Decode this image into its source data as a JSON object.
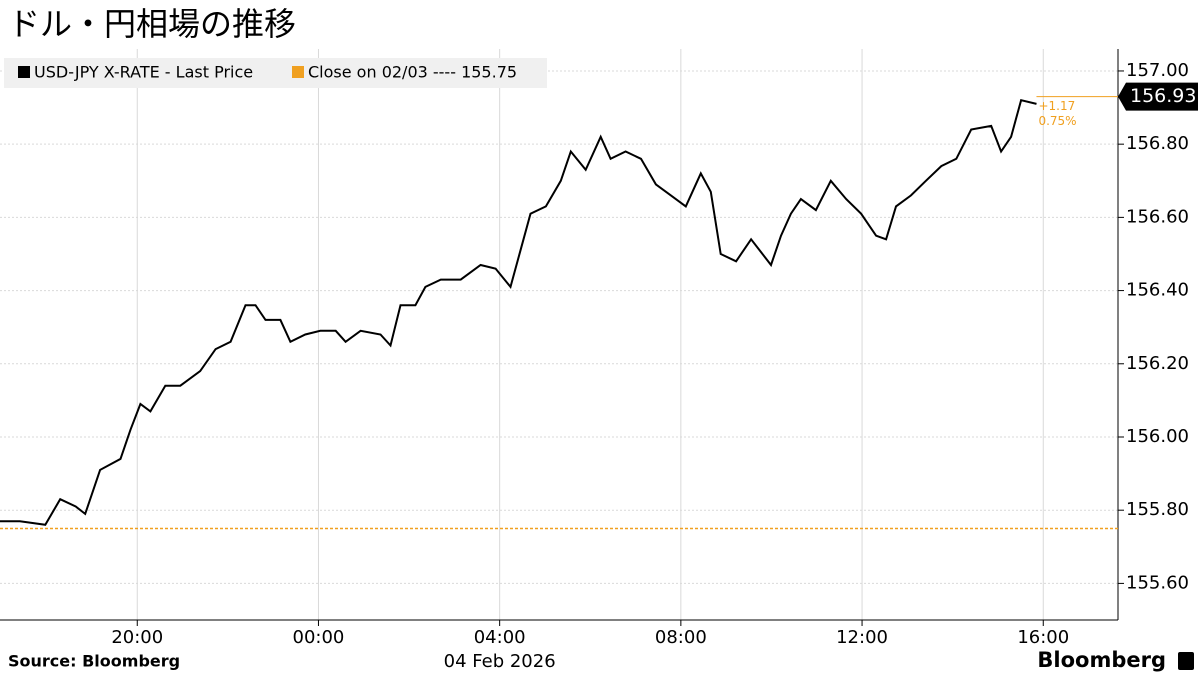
{
  "chart_data": {
    "type": "line",
    "title": "ドル・円相場の推移",
    "source": "Source:  Bloomberg",
    "brand": "Bloomberg",
    "date_label": "04 Feb 2026",
    "x": [
      -7.03,
      -6.59,
      -6.03,
      -5.7,
      -5.36,
      -5.15,
      -4.82,
      -4.37,
      -4.15,
      -3.93,
      -3.71,
      -3.38,
      -3.05,
      -2.61,
      -2.27,
      -1.94,
      -1.61,
      -1.39,
      -1.17,
      -0.84,
      -0.62,
      -0.29,
      0.04,
      0.38,
      0.6,
      0.93,
      1.37,
      1.59,
      1.81,
      2.14,
      2.36,
      2.7,
      3.14,
      3.58,
      3.91,
      4.24,
      4.46,
      4.68,
      5.02,
      5.35,
      5.57,
      5.9,
      6.23,
      6.45,
      6.78,
      7.12,
      7.45,
      7.78,
      8.11,
      8.44,
      8.66,
      8.88,
      9.22,
      9.55,
      9.99,
      10.21,
      10.43,
      10.65,
      10.98,
      11.31,
      11.65,
      11.98,
      12.31,
      12.53,
      12.75,
      13.08,
      13.41,
      13.75,
      14.08,
      14.41,
      14.85,
      15.07,
      15.29,
      15.51,
      15.85
    ],
    "series": [
      {
        "name": "USD-JPY X-RATE - Last Price",
        "color": "#000000",
        "values": [
          155.77,
          155.77,
          155.76,
          155.83,
          155.81,
          155.79,
          155.91,
          155.94,
          156.02,
          156.09,
          156.07,
          156.14,
          156.14,
          156.18,
          156.24,
          156.26,
          156.36,
          156.36,
          156.32,
          156.32,
          156.26,
          156.28,
          156.29,
          156.29,
          156.26,
          156.29,
          156.28,
          156.25,
          156.36,
          156.36,
          156.41,
          156.43,
          156.43,
          156.47,
          156.46,
          156.41,
          156.51,
          156.61,
          156.63,
          156.7,
          156.78,
          156.73,
          156.82,
          156.76,
          156.78,
          156.76,
          156.69,
          156.66,
          156.63,
          156.72,
          156.67,
          156.5,
          156.48,
          156.54,
          156.47,
          156.55,
          156.61,
          156.65,
          156.62,
          156.7,
          156.65,
          156.61,
          156.55,
          156.54,
          156.63,
          156.66,
          156.7,
          156.74,
          156.76,
          156.84,
          156.85,
          156.78,
          156.82,
          156.92,
          156.91
        ]
      }
    ],
    "reference_line": {
      "name": "Close on 02/03 ---- 155.75",
      "value": 155.75,
      "color": "#f0a020"
    },
    "last_price": {
      "value": 156.93,
      "label": "156.93"
    },
    "change_labels": [
      "+1.17",
      "0.75%"
    ],
    "xlim": [
      -7.03,
      17.65
    ],
    "xticks": [
      {
        "value": -4,
        "label": "20:00"
      },
      {
        "value": 0,
        "label": "00:00"
      },
      {
        "value": 4,
        "label": "04:00"
      },
      {
        "value": 8,
        "label": "08:00"
      },
      {
        "value": 12,
        "label": "12:00"
      },
      {
        "value": 16,
        "label": "16:00"
      }
    ],
    "ylim": [
      155.5,
      157.06
    ],
    "yticks": [
      {
        "value": 155.6,
        "label": "155.60"
      },
      {
        "value": 155.8,
        "label": "155.80"
      },
      {
        "value": 156,
        "label": "156.00"
      },
      {
        "value": 156.2,
        "label": "156.20"
      },
      {
        "value": 156.4,
        "label": "156.40"
      },
      {
        "value": 156.6,
        "label": "156.60"
      },
      {
        "value": 156.8,
        "label": "156.80"
      },
      {
        "value": 157,
        "label": "157.00"
      }
    ],
    "grid": true
  }
}
